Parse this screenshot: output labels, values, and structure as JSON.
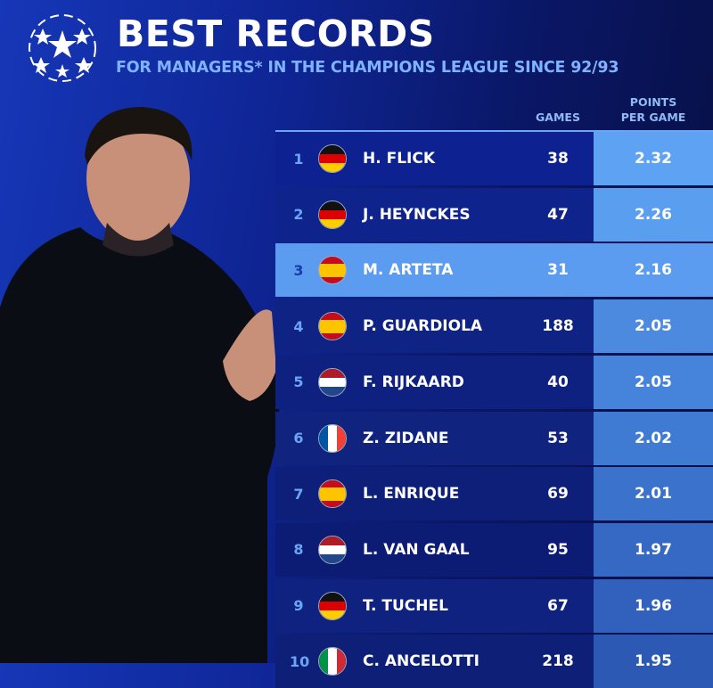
{
  "header": {
    "title": "BEST RECORDS",
    "subtitle": "FOR MANAGERS* IN THE CHAMPIONS LEAGUE SINCE 92/93"
  },
  "columns": {
    "games": "GAMES",
    "ppg": "POINTS\nPER GAME"
  },
  "colors": {
    "highlight": "#5b9cf0",
    "row": "#0e2388",
    "rank": "#6aa6f5",
    "ppg_top": "#5ea3f3"
  },
  "chart_data": {
    "type": "table",
    "title": "BEST RECORDS",
    "subtitle": "FOR MANAGERS* IN THE CHAMPIONS LEAGUE SINCE 92/93",
    "headers": [
      "GAMES",
      "POINTS PER GAME"
    ],
    "highlighted_rank": 3,
    "rows": [
      {
        "rank": "1",
        "flag": "germany",
        "name": "H. FLICK",
        "games": "38",
        "ppg": "2.32"
      },
      {
        "rank": "2",
        "flag": "germany",
        "name": "J. HEYNCKES",
        "games": "47",
        "ppg": "2.26"
      },
      {
        "rank": "3",
        "flag": "spain",
        "name": "M. ARTETA",
        "games": "31",
        "ppg": "2.16"
      },
      {
        "rank": "4",
        "flag": "spain",
        "name": "P. GUARDIOLA",
        "games": "188",
        "ppg": "2.05"
      },
      {
        "rank": "5",
        "flag": "netherlands",
        "name": "F. RIJKAARD",
        "games": "40",
        "ppg": "2.05"
      },
      {
        "rank": "6",
        "flag": "france",
        "name": "Z. ZIDANE",
        "games": "53",
        "ppg": "2.02"
      },
      {
        "rank": "7",
        "flag": "spain",
        "name": "L. ENRIQUE",
        "games": "69",
        "ppg": "2.01"
      },
      {
        "rank": "8",
        "flag": "netherlands",
        "name": "L. VAN GAAL",
        "games": "95",
        "ppg": "1.97"
      },
      {
        "rank": "9",
        "flag": "germany",
        "name": "T. TUCHEL",
        "games": "67",
        "ppg": "1.96"
      },
      {
        "rank": "10",
        "flag": "italy",
        "name": "C. ANCELOTTI",
        "games": "218",
        "ppg": "1.95"
      }
    ]
  }
}
